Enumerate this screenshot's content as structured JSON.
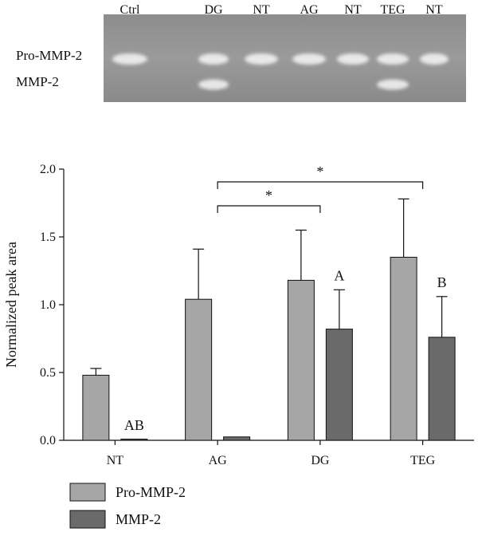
{
  "gel": {
    "lane_labels": [
      "Ctrl",
      "DG",
      "NT",
      "AG",
      "NT",
      "TEG",
      "NT"
    ],
    "band_labels": [
      "Pro-MMP-2",
      "MMP-2"
    ],
    "bands": [
      {
        "lane": "Ctrl",
        "pro": true,
        "active": false
      },
      {
        "lane": "DG",
        "pro": true,
        "active": true
      },
      {
        "lane": "NT",
        "pro": true,
        "active": false
      },
      {
        "lane": "AG",
        "pro": true,
        "active": false
      },
      {
        "lane": "NT",
        "pro": true,
        "active": false
      },
      {
        "lane": "TEG",
        "pro": true,
        "active": true
      },
      {
        "lane": "NT",
        "pro": true,
        "active": false
      }
    ]
  },
  "chart_data": {
    "type": "bar",
    "categories": [
      "NT",
      "AG",
      "DG",
      "TEG"
    ],
    "ylabel": "Normalized peak area",
    "xlabel": "",
    "title": "",
    "ylim": [
      0,
      2.0
    ],
    "yticks": [
      "0.0",
      "0.5",
      "1.0",
      "1.5",
      "2.0"
    ],
    "series": [
      {
        "name": "Pro-MMP-2",
        "values": [
          0.48,
          1.04,
          1.18,
          1.35
        ],
        "errors": [
          0.05,
          0.37,
          0.37,
          0.43
        ],
        "color": "#a6a6a6"
      },
      {
        "name": "MMP-2",
        "values": [
          0.005,
          0.025,
          0.82,
          0.76
        ],
        "errors": [
          0.0,
          0.0,
          0.29,
          0.3
        ],
        "color": "#6a6a6a"
      }
    ],
    "annotations": [
      {
        "text": "AB",
        "category": "NT",
        "series": "MMP-2"
      },
      {
        "text": "A",
        "category": "DG",
        "series": "MMP-2"
      },
      {
        "text": "B",
        "category": "TEG",
        "series": "MMP-2"
      }
    ],
    "significance": [
      {
        "from": "AG",
        "to": "DG",
        "label": "*"
      },
      {
        "from": "AG",
        "to": "TEG",
        "label": "*"
      }
    ],
    "grid": false,
    "legend_position": "bottom-left"
  }
}
